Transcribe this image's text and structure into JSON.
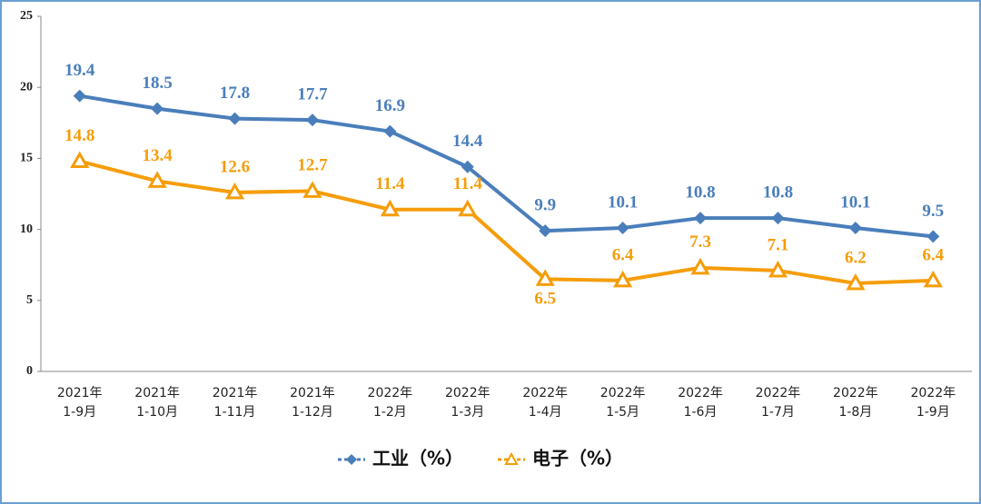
{
  "chart_data": {
    "type": "line",
    "categories": [
      [
        "2021年",
        "1-9月"
      ],
      [
        "2021年",
        "1-10月"
      ],
      [
        "2021年",
        "1-11月"
      ],
      [
        "2021年",
        "1-12月"
      ],
      [
        "2022年",
        "1-2月"
      ],
      [
        "2022年",
        "1-3月"
      ],
      [
        "2022年",
        "1-4月"
      ],
      [
        "2022年",
        "1-5月"
      ],
      [
        "2022年",
        "1-6月"
      ],
      [
        "2022年",
        "1-7月"
      ],
      [
        "2022年",
        "1-8月"
      ],
      [
        "2022年",
        "1-9月"
      ]
    ],
    "series": [
      {
        "name": "工业（%）",
        "color": "#4a7ebb",
        "marker": "diamond",
        "values": [
          19.4,
          18.5,
          17.8,
          17.7,
          16.9,
          14.4,
          9.9,
          10.1,
          10.8,
          10.8,
          10.1,
          9.5
        ]
      },
      {
        "name": "电子（%）",
        "color": "#f59d0a",
        "marker": "triangle",
        "values": [
          14.8,
          13.4,
          12.6,
          12.7,
          11.4,
          11.4,
          6.5,
          6.4,
          7.3,
          7.1,
          6.2,
          6.4
        ]
      }
    ],
    "ylim": [
      0,
      25
    ],
    "yticks": [
      0,
      5,
      10,
      15,
      20,
      25
    ],
    "grid": false,
    "legend": "bottom"
  }
}
